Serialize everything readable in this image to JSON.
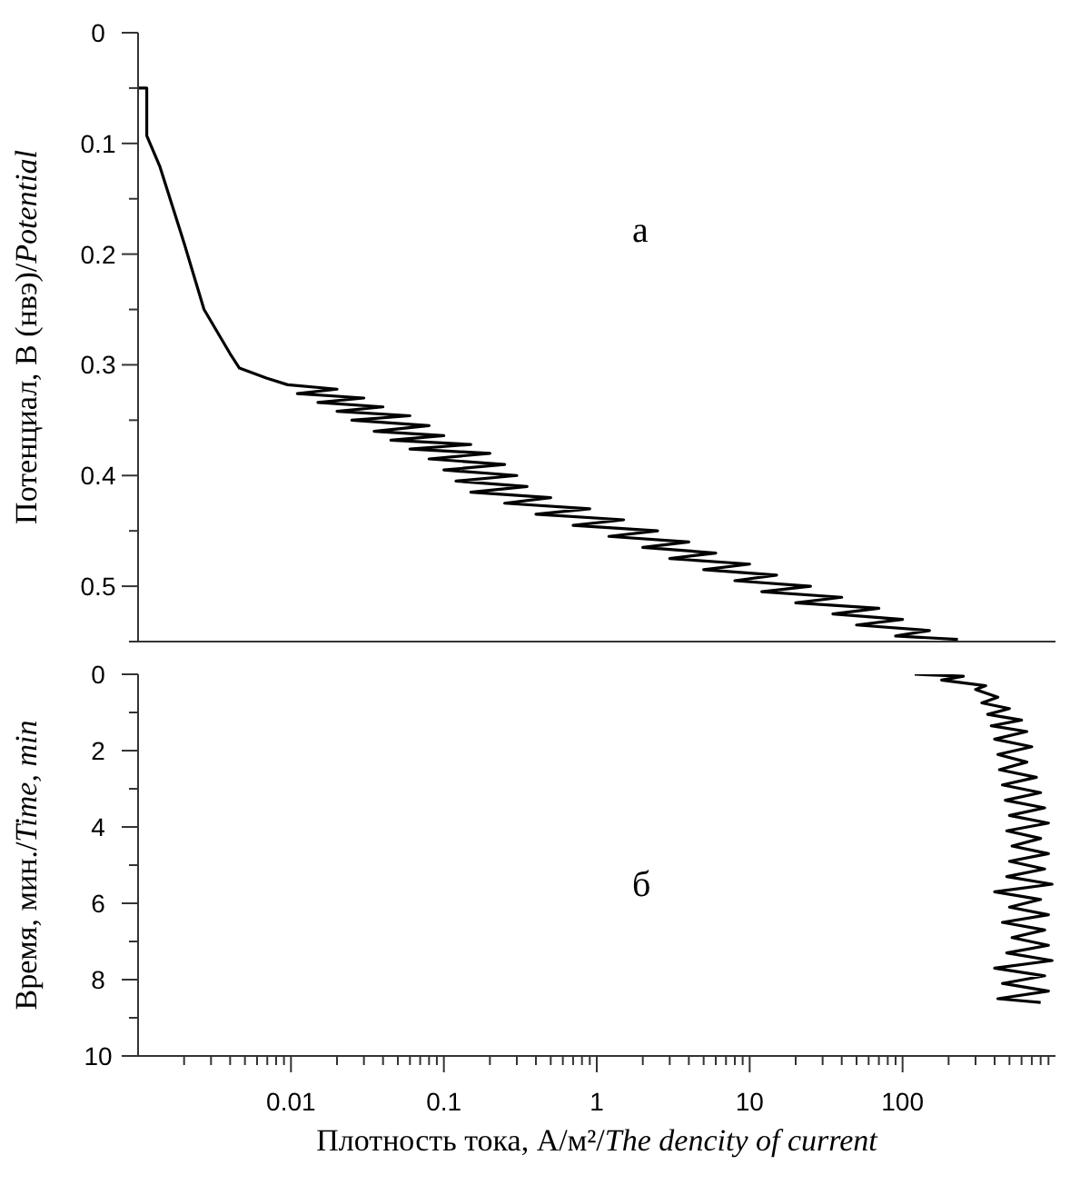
{
  "chart_data": [
    {
      "type": "line",
      "ylabel": "Потенциал, В (нвэ)/Potential",
      "annotations": [
        "а"
      ],
      "log": "x",
      "tick_labels": "y",
      "xlim": [
        0.001,
        1000
      ],
      "ylim": [
        0.55,
        0
      ],
      "yticks": [
        0,
        {
          "value": 0.05,
          "label": null
        },
        0.1,
        {
          "value": 0.15,
          "label": null
        },
        0.2,
        {
          "value": 0.25,
          "label": null
        },
        0.3,
        {
          "value": 0.35,
          "label": null
        },
        0.4,
        {
          "value": 0.45,
          "label": null
        },
        0.5,
        {
          "value": 0.55,
          "label": null
        }
      ],
      "series": [
        {
          "color": "#000000",
          "x": [
            0.001,
            0.00114,
            0.00114,
            0.00139,
            0.002,
            0.0027,
            0.004,
            0.0046,
            0.0069,
            0.0095,
            0.02,
            0.011,
            0.03,
            0.015,
            0.04,
            0.02,
            0.06,
            0.025,
            0.08,
            0.035,
            0.1,
            0.045,
            0.15,
            0.06,
            0.2,
            0.08,
            0.25,
            0.1,
            0.3,
            0.12,
            0.35,
            0.15,
            0.5,
            0.25,
            0.9,
            0.4,
            1.5,
            0.7,
            2.5,
            1.2,
            4,
            2,
            6,
            3,
            10,
            5,
            15,
            8,
            25,
            12,
            40,
            20,
            70,
            35,
            100,
            50,
            150,
            90,
            230
          ],
          "values": [
            0.05,
            0.05,
            0.093,
            0.121,
            0.19,
            0.25,
            0.29,
            0.303,
            0.312,
            0.318,
            0.322,
            0.326,
            0.33,
            0.334,
            0.338,
            0.342,
            0.346,
            0.35,
            0.355,
            0.36,
            0.364,
            0.368,
            0.372,
            0.376,
            0.38,
            0.385,
            0.39,
            0.395,
            0.4,
            0.405,
            0.41,
            0.415,
            0.42,
            0.425,
            0.43,
            0.435,
            0.44,
            0.445,
            0.45,
            0.455,
            0.46,
            0.465,
            0.47,
            0.475,
            0.48,
            0.485,
            0.49,
            0.495,
            0.5,
            0.505,
            0.51,
            0.515,
            0.52,
            0.525,
            0.53,
            0.535,
            0.54,
            0.545,
            0.548
          ]
        }
      ]
    },
    {
      "type": "line",
      "ylabel": "Время, мин./Time, min",
      "xlabel": "Плотность тока, А/м²/The dencity of current",
      "annotations": [
        "б"
      ],
      "log": "x",
      "xlim": [
        0.001,
        1000
      ],
      "ylim": [
        10,
        0
      ],
      "xticks": [
        {
          "value": 0.002,
          "label": null
        },
        {
          "value": 0.003,
          "label": null
        },
        {
          "value": 0.004,
          "label": null
        },
        {
          "value": 0.005,
          "label": null
        },
        {
          "value": 0.006,
          "label": null
        },
        {
          "value": 0.007,
          "label": null
        },
        {
          "value": 0.008,
          "label": null
        },
        {
          "value": 0.009,
          "label": null
        },
        0.01,
        {
          "value": 0.02,
          "label": null
        },
        {
          "value": 0.03,
          "label": null
        },
        {
          "value": 0.04,
          "label": null
        },
        {
          "value": 0.05,
          "label": null
        },
        {
          "value": 0.06,
          "label": null
        },
        {
          "value": 0.07,
          "label": null
        },
        {
          "value": 0.08,
          "label": null
        },
        {
          "value": 0.09,
          "label": null
        },
        0.1,
        {
          "value": 0.2,
          "label": null
        },
        {
          "value": 0.3,
          "label": null
        },
        {
          "value": 0.4,
          "label": null
        },
        {
          "value": 0.5,
          "label": null
        },
        {
          "value": 0.6,
          "label": null
        },
        {
          "value": 0.7,
          "label": null
        },
        {
          "value": 0.8,
          "label": null
        },
        {
          "value": 0.9,
          "label": null
        },
        1,
        {
          "value": 2,
          "label": null
        },
        {
          "value": 3,
          "label": null
        },
        {
          "value": 4,
          "label": null
        },
        {
          "value": 5,
          "label": null
        },
        {
          "value": 6,
          "label": null
        },
        {
          "value": 7,
          "label": null
        },
        {
          "value": 8,
          "label": null
        },
        {
          "value": 9,
          "label": null
        },
        10,
        {
          "value": 20,
          "label": null
        },
        {
          "value": 30,
          "label": null
        },
        {
          "value": 40,
          "label": null
        },
        {
          "value": 50,
          "label": null
        },
        {
          "value": 60,
          "label": null
        },
        {
          "value": 70,
          "label": null
        },
        {
          "value": 80,
          "label": null
        },
        {
          "value": 90,
          "label": null
        },
        100,
        {
          "value": 200,
          "label": null
        },
        {
          "value": 300,
          "label": null
        },
        {
          "value": 400,
          "label": null
        },
        {
          "value": 500,
          "label": null
        },
        {
          "value": 600,
          "label": null
        },
        {
          "value": 700,
          "label": null
        },
        {
          "value": 800,
          "label": null
        },
        {
          "value": 900,
          "label": null
        }
      ],
      "yticks": [
        0,
        {
          "value": 1,
          "label": null
        },
        2,
        {
          "value": 3,
          "label": null
        },
        4,
        {
          "value": 5,
          "label": null
        },
        6,
        {
          "value": 7,
          "label": null
        },
        8,
        {
          "value": 9,
          "label": null
        },
        10
      ],
      "series": [
        {
          "color": "#000000",
          "x": [
            120,
            250,
            180,
            350,
            300,
            420,
            330,
            500,
            360,
            600,
            380,
            650,
            400,
            700,
            420,
            650,
            430,
            750,
            450,
            800,
            470,
            850,
            500,
            900,
            480,
            800,
            520,
            900,
            500,
            850,
            480,
            950,
            400,
            800,
            500,
            900,
            450,
            850,
            520,
            900,
            480,
            950,
            400,
            850,
            450,
            900,
            420,
            800
          ],
          "values": [
            0,
            0.05,
            0.15,
            0.3,
            0.4,
            0.6,
            0.75,
            0.9,
            1.05,
            1.2,
            1.35,
            1.5,
            1.7,
            1.9,
            2.1,
            2.3,
            2.5,
            2.7,
            2.9,
            3.1,
            3.3,
            3.5,
            3.7,
            3.9,
            4.1,
            4.3,
            4.5,
            4.7,
            4.9,
            5.1,
            5.3,
            5.5,
            5.7,
            5.9,
            6.1,
            6.3,
            6.5,
            6.7,
            6.9,
            7.1,
            7.3,
            7.5,
            7.7,
            7.9,
            8.1,
            8.3,
            8.5,
            8.6
          ]
        }
      ]
    }
  ]
}
